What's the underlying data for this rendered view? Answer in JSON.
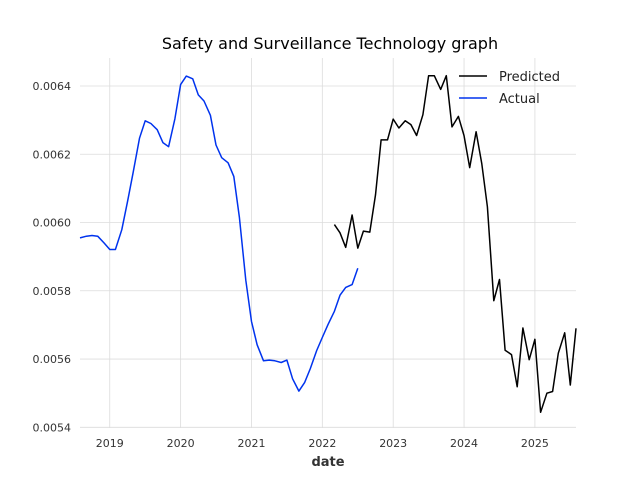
{
  "chart_data": {
    "type": "line",
    "title": "Safety and Surveillance Technology graph",
    "xlabel": "date",
    "ylabel": "",
    "x_tick_labels": [
      "2019",
      "2020",
      "2021",
      "2022",
      "2023",
      "2024",
      "2025"
    ],
    "x_tick_values": [
      2019,
      2020,
      2021,
      2022,
      2023,
      2024,
      2025
    ],
    "y_tick_labels": [
      "0.0054",
      "0.0056",
      "0.0058",
      "0.0060",
      "0.0062",
      "0.0064"
    ],
    "y_tick_values": [
      0.0054,
      0.0056,
      0.0058,
      0.006,
      0.0062,
      0.0064
    ],
    "xlim": [
      2018.58,
      2025.58
    ],
    "ylim": [
      0.005398,
      0.006482
    ],
    "grid": true,
    "legend_position": "top-right",
    "colors": {
      "Predicted": "#000000",
      "Actual": "#0033ee"
    },
    "series": [
      {
        "name": "Predicted",
        "color": "#000000",
        "points": [
          [
            2022.17,
            0.005994
          ],
          [
            2022.25,
            0.00597
          ],
          [
            2022.33,
            0.005927
          ],
          [
            2022.42,
            0.006022
          ],
          [
            2022.5,
            0.005925
          ],
          [
            2022.58,
            0.005975
          ],
          [
            2022.67,
            0.005972
          ],
          [
            2022.75,
            0.006081
          ],
          [
            2022.83,
            0.006242
          ],
          [
            2022.92,
            0.006242
          ],
          [
            2023.0,
            0.006303
          ],
          [
            2023.08,
            0.006277
          ],
          [
            2023.17,
            0.006298
          ],
          [
            2023.25,
            0.006287
          ],
          [
            2023.33,
            0.006255
          ],
          [
            2023.42,
            0.006316
          ],
          [
            2023.5,
            0.00643
          ],
          [
            2023.58,
            0.00643
          ],
          [
            2023.67,
            0.00639
          ],
          [
            2023.75,
            0.00643
          ],
          [
            2023.83,
            0.00628
          ],
          [
            2023.92,
            0.006311
          ],
          [
            2024.0,
            0.006255
          ],
          [
            2024.08,
            0.006161
          ],
          [
            2024.17,
            0.006266
          ],
          [
            2024.25,
            0.006172
          ],
          [
            2024.33,
            0.006046
          ],
          [
            2024.42,
            0.005771
          ],
          [
            2024.5,
            0.005833
          ],
          [
            2024.58,
            0.005626
          ],
          [
            2024.67,
            0.005613
          ],
          [
            2024.75,
            0.005519
          ],
          [
            2024.83,
            0.005691
          ],
          [
            2024.92,
            0.005598
          ],
          [
            2025.0,
            0.005658
          ],
          [
            2025.08,
            0.005444
          ],
          [
            2025.17,
            0.0055
          ],
          [
            2025.25,
            0.005505
          ],
          [
            2025.33,
            0.005617
          ],
          [
            2025.42,
            0.005677
          ],
          [
            2025.5,
            0.005524
          ],
          [
            2025.58,
            0.00569
          ]
        ]
      },
      {
        "name": "Actual",
        "color": "#0033ee",
        "points": [
          [
            2018.58,
            0.005955
          ],
          [
            2018.67,
            0.00596
          ],
          [
            2018.75,
            0.005962
          ],
          [
            2018.83,
            0.00596
          ],
          [
            2018.92,
            0.00594
          ],
          [
            2019.0,
            0.005921
          ],
          [
            2019.08,
            0.005921
          ],
          [
            2019.17,
            0.005979
          ],
          [
            2019.25,
            0.006061
          ],
          [
            2019.33,
            0.006146
          ],
          [
            2019.42,
            0.006247
          ],
          [
            2019.5,
            0.006298
          ],
          [
            2019.58,
            0.00629
          ],
          [
            2019.67,
            0.006272
          ],
          [
            2019.75,
            0.006234
          ],
          [
            2019.83,
            0.006222
          ],
          [
            2019.92,
            0.006304
          ],
          [
            2020.0,
            0.006404
          ],
          [
            2020.08,
            0.006429
          ],
          [
            2020.17,
            0.006421
          ],
          [
            2020.25,
            0.006374
          ],
          [
            2020.33,
            0.006356
          ],
          [
            2020.42,
            0.006314
          ],
          [
            2020.5,
            0.006227
          ],
          [
            2020.58,
            0.00619
          ],
          [
            2020.67,
            0.006175
          ],
          [
            2020.75,
            0.006135
          ],
          [
            2020.83,
            0.006015
          ],
          [
            2020.92,
            0.005831
          ],
          [
            2021.0,
            0.00571
          ],
          [
            2021.08,
            0.005642
          ],
          [
            2021.17,
            0.005595
          ],
          [
            2021.25,
            0.005597
          ],
          [
            2021.33,
            0.005595
          ],
          [
            2021.42,
            0.00559
          ],
          [
            2021.5,
            0.005597
          ],
          [
            2021.58,
            0.005542
          ],
          [
            2021.67,
            0.005506
          ],
          [
            2021.75,
            0.005531
          ],
          [
            2021.83,
            0.005572
          ],
          [
            2021.92,
            0.005625
          ],
          [
            2022.0,
            0.005663
          ],
          [
            2022.08,
            0.005701
          ],
          [
            2022.17,
            0.00574
          ],
          [
            2022.25,
            0.005787
          ],
          [
            2022.33,
            0.00581
          ],
          [
            2022.42,
            0.005818
          ],
          [
            2022.5,
            0.005866
          ]
        ]
      }
    ]
  }
}
